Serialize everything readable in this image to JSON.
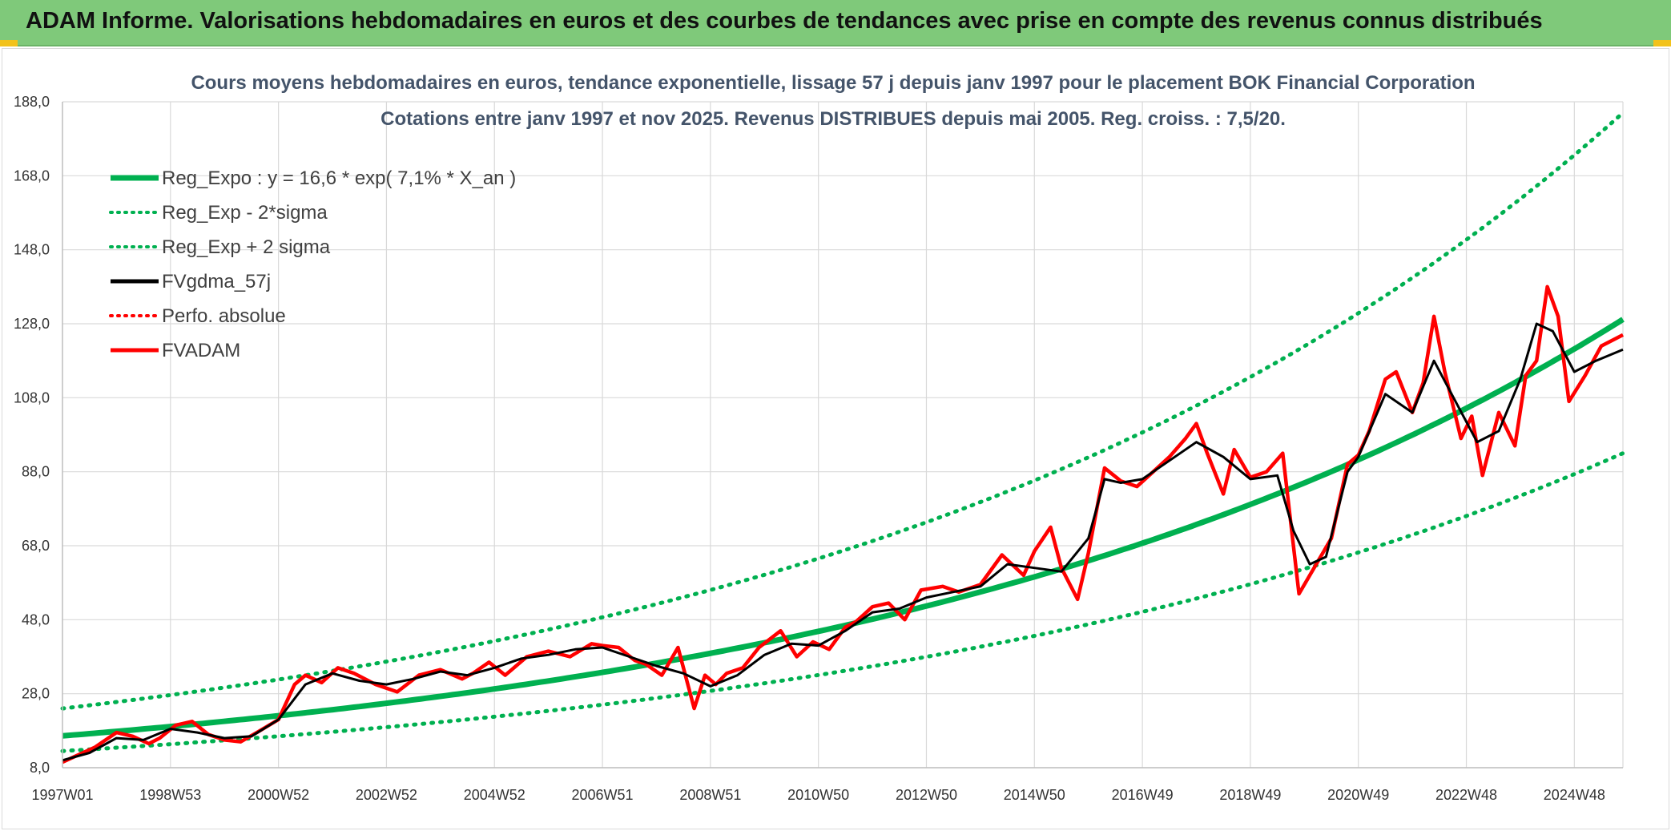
{
  "banner": {
    "title": "ADAM Informe. Valorisations hebdomadaires en euros et des courbes de tendances avec prise en compte des revenus connus distribués"
  },
  "colors": {
    "banner_bg": "#7fc97a",
    "regression": "#00b050",
    "smoothed": "#000000",
    "price": "#ff0000",
    "gridline": "#d9d9d9"
  },
  "chart_data": {
    "type": "line",
    "title": "Cours moyens hebdomadaires en euros, tendance exponentielle, lissage 57 j depuis janv 1997 pour le placement BOK Financial Corporation",
    "subtitle": "Cotations entre janv 1997 et nov 2025. Revenus DISTRIBUES depuis mai 2005. Reg. croiss. : 7,5/20.",
    "xlabel": "",
    "ylabel": "",
    "ylim": [
      8,
      188
    ],
    "yticks": [
      "8,0",
      "28,0",
      "48,0",
      "68,0",
      "88,0",
      "108,0",
      "128,0",
      "148,0",
      "168,0",
      "188,0"
    ],
    "xticks": [
      "1997W01",
      "1998W53",
      "2000W52",
      "2002W52",
      "2004W52",
      "2006W51",
      "2008W51",
      "2010W50",
      "2012W50",
      "2014W50",
      "2016W49",
      "2018W49",
      "2020W49",
      "2022W48",
      "2024W48"
    ],
    "xtick_years": [
      1997.0,
      1999.0,
      2001.0,
      2003.0,
      2005.0,
      2007.0,
      2009.0,
      2011.0,
      2013.0,
      2015.0,
      2017.0,
      2019.0,
      2021.0,
      2023.0,
      2025.0
    ],
    "xlim": [
      1997.0,
      2025.9
    ],
    "grid": true,
    "legend_position": "top-left",
    "legend": [
      {
        "label": "Reg_Expo : y = 16,6 * exp( 7,1% *  X_an )",
        "style": "solid",
        "color": "#00b050"
      },
      {
        "label": "Reg_Exp - 2*sigma",
        "style": "dotted",
        "color": "#00b050"
      },
      {
        "label": "Reg_Exp + 2 sigma",
        "style": "dotted",
        "color": "#00b050"
      },
      {
        "label": "FVgdma_57j",
        "style": "solid",
        "color": "#000000"
      },
      {
        "label": "Perfo. absolue",
        "style": "dotted",
        "color": "#ff0000"
      },
      {
        "label": "FVADAM",
        "style": "solid",
        "color": "#ff0000"
      }
    ],
    "regression": {
      "a": 16.6,
      "rate": 0.071,
      "x0": 1997.0
    },
    "band_lower": {
      "start": 12.5,
      "end": 93.0
    },
    "band_upper": {
      "start": 24.0,
      "end": 185.0
    },
    "series": [
      {
        "name": "FVADAM",
        "x": [
          1997.0,
          1997.3,
          1997.6,
          1998.0,
          1998.3,
          1998.6,
          1998.8,
          1999.1,
          1999.4,
          1999.7,
          2000.0,
          2000.3,
          2000.6,
          2001.0,
          2001.3,
          2001.5,
          2001.8,
          2002.1,
          2002.4,
          2002.8,
          2003.2,
          2003.6,
          2004.0,
          2004.4,
          2004.6,
          2004.9,
          2005.2,
          2005.6,
          2006.0,
          2006.4,
          2006.8,
          2007.0,
          2007.3,
          2007.6,
          2007.8,
          2008.1,
          2008.4,
          2008.7,
          2008.9,
          2009.1,
          2009.3,
          2009.6,
          2009.9,
          2010.3,
          2010.6,
          2010.9,
          2011.2,
          2011.5,
          2011.7,
          2012.0,
          2012.3,
          2012.6,
          2012.9,
          2013.3,
          2013.6,
          2014.0,
          2014.4,
          2014.8,
          2015.0,
          2015.3,
          2015.5,
          2015.8,
          2016.0,
          2016.3,
          2016.6,
          2016.9,
          2017.2,
          2017.5,
          2017.8,
          2018.0,
          2018.2,
          2018.5,
          2018.7,
          2019.0,
          2019.3,
          2019.6,
          2019.9,
          2020.1,
          2020.3,
          2020.5,
          2020.8,
          2021.0,
          2021.2,
          2021.5,
          2021.7,
          2022.0,
          2022.2,
          2022.4,
          2022.6,
          2022.9,
          2023.1,
          2023.3,
          2023.6,
          2023.9,
          2024.1,
          2024.3,
          2024.5,
          2024.7,
          2024.9,
          2025.2,
          2025.5,
          2025.9
        ],
        "y": [
          9.5,
          11.5,
          13.5,
          17.5,
          16.5,
          14.5,
          16.0,
          19.5,
          20.5,
          17.0,
          15.5,
          15.0,
          17.5,
          21.0,
          30.5,
          33.0,
          31.0,
          35.0,
          33.5,
          30.5,
          28.5,
          33.0,
          34.5,
          32.0,
          33.5,
          36.5,
          33.0,
          38.0,
          39.5,
          38.0,
          41.5,
          41.0,
          40.5,
          37.0,
          36.0,
          33.0,
          40.5,
          24.0,
          33.0,
          30.5,
          33.5,
          35.0,
          40.5,
          45.0,
          38.0,
          42.0,
          40.0,
          46.0,
          47.5,
          51.5,
          52.5,
          48.0,
          56.0,
          57.0,
          55.5,
          57.5,
          65.5,
          60.0,
          66.5,
          73.0,
          62.0,
          53.5,
          66.0,
          89.0,
          85.5,
          84.0,
          88.0,
          92.0,
          97.0,
          101.0,
          93.0,
          82.0,
          94.0,
          86.5,
          88.0,
          93.0,
          55.0,
          60.0,
          65.0,
          70.0,
          90.0,
          92.5,
          99.0,
          113.0,
          115.0,
          104.0,
          112.0,
          130.0,
          115.0,
          97.0,
          103.0,
          87.0,
          104.0,
          95.0,
          114.0,
          118.0,
          138.0,
          130.0,
          107.0,
          114.0,
          122.0,
          125.0
        ]
      },
      {
        "name": "FVgdma_57j",
        "x": [
          1997.0,
          1997.5,
          1998.0,
          1998.5,
          1999.0,
          1999.5,
          2000.0,
          2000.5,
          2001.0,
          2001.5,
          2002.0,
          2002.5,
          2003.0,
          2003.5,
          2004.0,
          2004.5,
          2005.0,
          2005.5,
          2006.0,
          2006.5,
          2007.0,
          2007.5,
          2008.0,
          2008.5,
          2009.0,
          2009.5,
          2010.0,
          2010.5,
          2011.0,
          2011.5,
          2012.0,
          2012.5,
          2013.0,
          2013.5,
          2014.0,
          2014.5,
          2015.0,
          2015.5,
          2016.0,
          2016.3,
          2016.6,
          2017.0,
          2017.5,
          2018.0,
          2018.5,
          2019.0,
          2019.5,
          2019.8,
          2020.1,
          2020.4,
          2020.8,
          2021.0,
          2021.5,
          2022.0,
          2022.4,
          2022.8,
          2023.2,
          2023.6,
          2024.0,
          2024.3,
          2024.6,
          2025.0,
          2025.4,
          2025.9
        ],
        "y": [
          10.0,
          12.0,
          16.0,
          15.5,
          18.5,
          17.5,
          16.0,
          16.5,
          21.0,
          30.5,
          33.5,
          31.5,
          30.5,
          32.0,
          34.0,
          33.0,
          35.0,
          37.5,
          38.5,
          40.0,
          40.5,
          38.0,
          35.5,
          33.5,
          30.0,
          33.0,
          38.5,
          41.5,
          41.0,
          45.0,
          50.0,
          51.0,
          54.0,
          55.5,
          57.0,
          63.0,
          62.0,
          61.0,
          70.0,
          86.0,
          85.0,
          86.0,
          91.0,
          96.0,
          92.0,
          86.0,
          87.0,
          72.0,
          63.0,
          65.0,
          88.0,
          92.0,
          109.0,
          104.0,
          118.0,
          107.0,
          96.0,
          99.0,
          113.0,
          128.0,
          126.0,
          115.0,
          118.0,
          121.0
        ]
      }
    ]
  }
}
